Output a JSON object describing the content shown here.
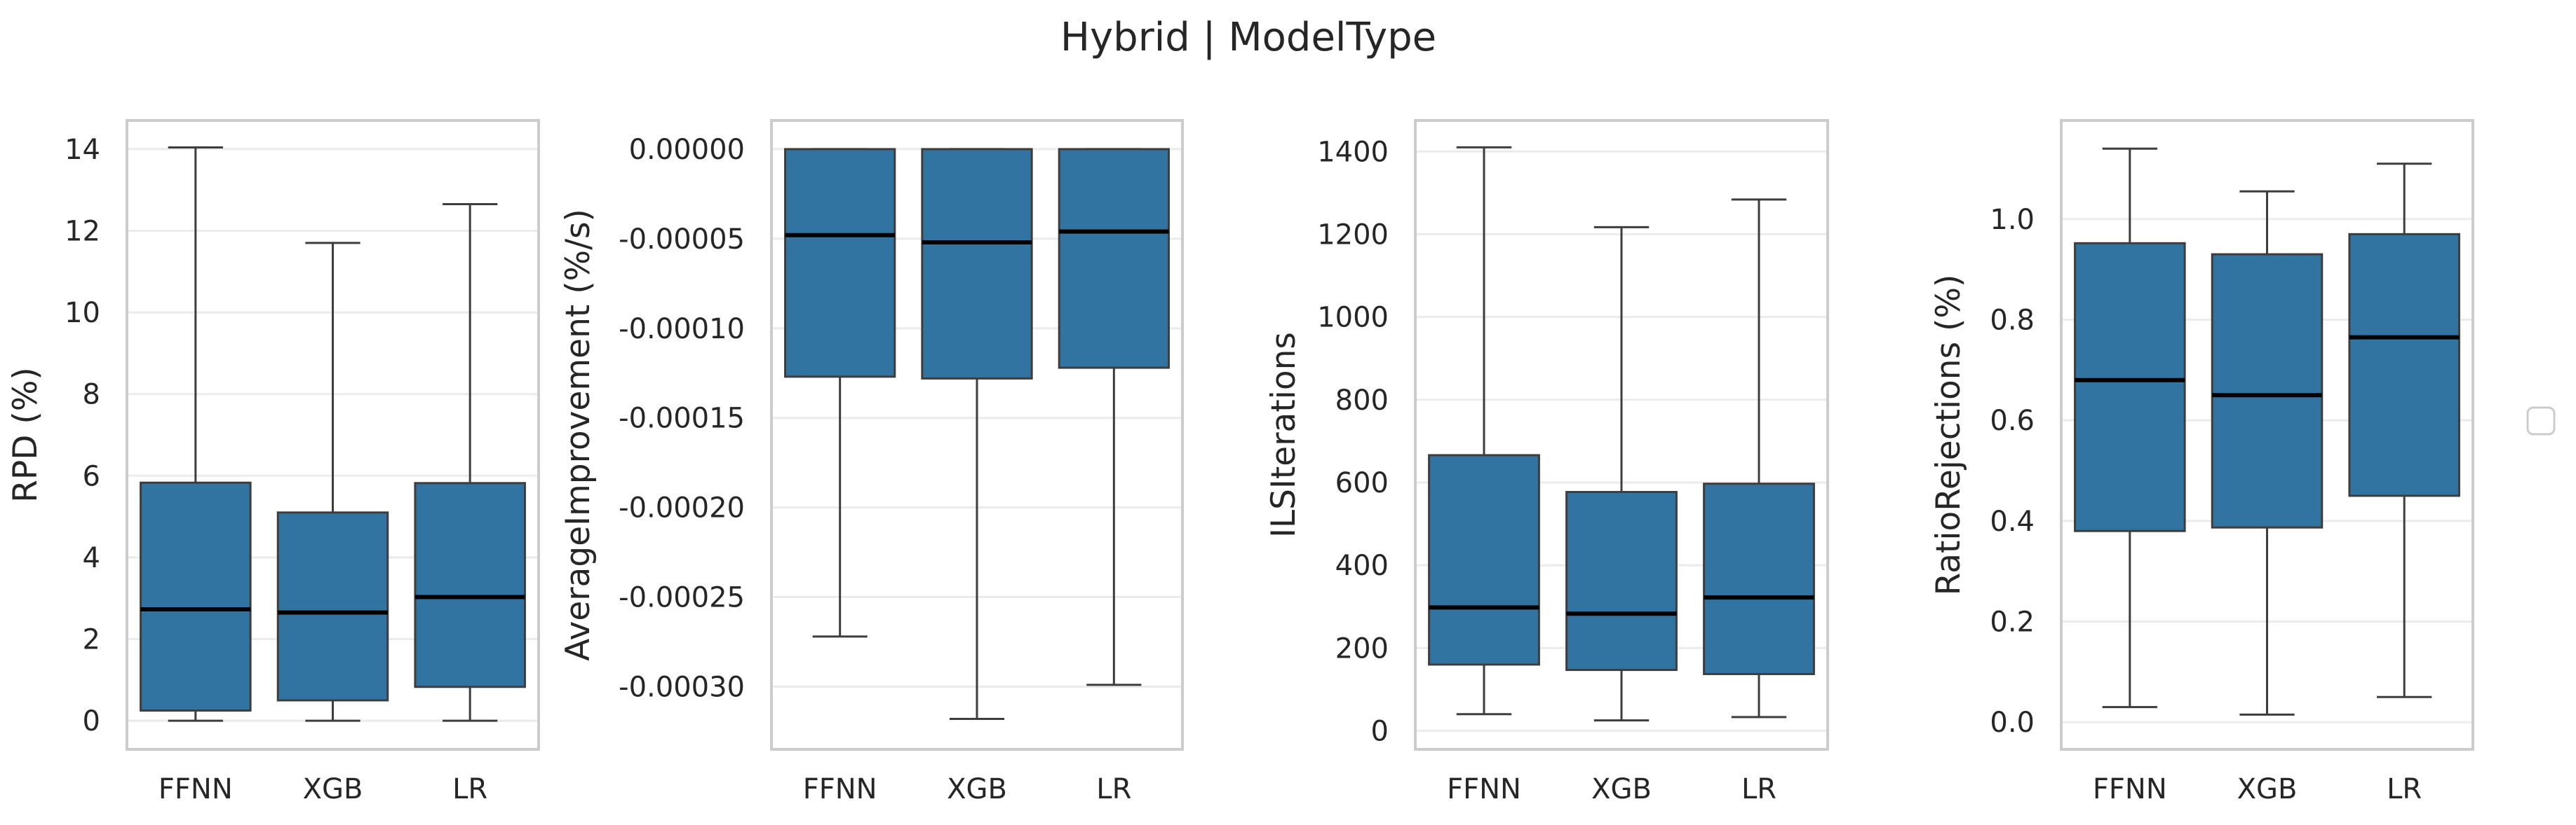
{
  "title": "Hybrid | ModelType",
  "colors": {
    "box": "#3274a1",
    "median": "#000000",
    "whisker": "#3d3d3d",
    "frame": "#cccccc",
    "grid": "#ebebeb"
  },
  "chart_data": [
    {
      "type": "box",
      "ylabel": "RPD (%)",
      "categories": [
        "FFNN",
        "XGB",
        "LR"
      ],
      "ylim": [
        -0.7,
        14.7
      ],
      "yticks": [
        0,
        2,
        4,
        6,
        8,
        10,
        12,
        14
      ],
      "ytick_labels": [
        "0",
        "2",
        "4",
        "6",
        "8",
        "10",
        "12",
        "14"
      ],
      "grid": true,
      "boxes": [
        {
          "min": 0.0,
          "q1": 0.25,
          "median": 2.73,
          "q3": 5.83,
          "max": 14.04
        },
        {
          "min": 0.0,
          "q1": 0.5,
          "median": 2.65,
          "q3": 5.1,
          "max": 11.7
        },
        {
          "min": 0.0,
          "q1": 0.83,
          "median": 3.03,
          "q3": 5.82,
          "max": 12.65
        }
      ]
    },
    {
      "type": "box",
      "ylabel": "AverageImprovement (%/s)",
      "categories": [
        "FFNN",
        "XGB",
        "LR"
      ],
      "ylim": [
        -0.000335,
        1.6e-05
      ],
      "yticks": [
        0,
        -5e-05,
        -0.0001,
        -0.00015,
        -0.0002,
        -0.00025,
        -0.0003
      ],
      "ytick_labels": [
        "0.00000",
        "-0.00005",
        "-0.00010",
        "-0.00015",
        "-0.00020",
        "-0.00025",
        "-0.00030"
      ],
      "grid": true,
      "boxes": [
        {
          "min": -0.000272,
          "q1": -0.000127,
          "median": -4.8e-05,
          "q3": 0.0,
          "max": 0.0
        },
        {
          "min": -0.000318,
          "q1": -0.000128,
          "median": -5.2e-05,
          "q3": 0.0,
          "max": 0.0
        },
        {
          "min": -0.000299,
          "q1": -0.000122,
          "median": -4.6e-05,
          "q3": 0.0,
          "max": 0.0
        }
      ]
    },
    {
      "type": "box",
      "ylabel": "ILSIterations",
      "categories": [
        "FFNN",
        "XGB",
        "LR"
      ],
      "ylim": [
        -45,
        1475
      ],
      "yticks": [
        0,
        200,
        400,
        600,
        800,
        1000,
        1200,
        1400
      ],
      "ytick_labels": [
        "0",
        "200",
        "400",
        "600",
        "800",
        "1000",
        "1200",
        "1400"
      ],
      "grid": true,
      "boxes": [
        {
          "min": 40,
          "q1": 160,
          "median": 298,
          "q3": 666,
          "max": 1410
        },
        {
          "min": 25,
          "q1": 147,
          "median": 283,
          "q3": 577,
          "max": 1217
        },
        {
          "min": 33,
          "q1": 137,
          "median": 322,
          "q3": 597,
          "max": 1284
        }
      ]
    },
    {
      "type": "box",
      "ylabel": "RatioRejections (%)",
      "categories": [
        "FFNN",
        "XGB",
        "LR"
      ],
      "ylim": [
        -0.054,
        1.196
      ],
      "yticks": [
        0,
        0.2,
        0.4,
        0.6,
        0.8,
        1.0
      ],
      "ytick_labels": [
        "0.0",
        "0.2",
        "0.4",
        "0.6",
        "0.8",
        "1.0"
      ],
      "grid": true,
      "boxes": [
        {
          "min": 0.03,
          "q1": 0.38,
          "median": 0.68,
          "q3": 0.952,
          "max": 1.14
        },
        {
          "min": 0.015,
          "q1": 0.387,
          "median": 0.65,
          "q3": 0.93,
          "max": 1.055
        },
        {
          "min": 0.05,
          "q1": 0.45,
          "median": 0.765,
          "q3": 0.97,
          "max": 1.11
        }
      ]
    }
  ],
  "legend": {
    "placement": "right",
    "entries": []
  }
}
